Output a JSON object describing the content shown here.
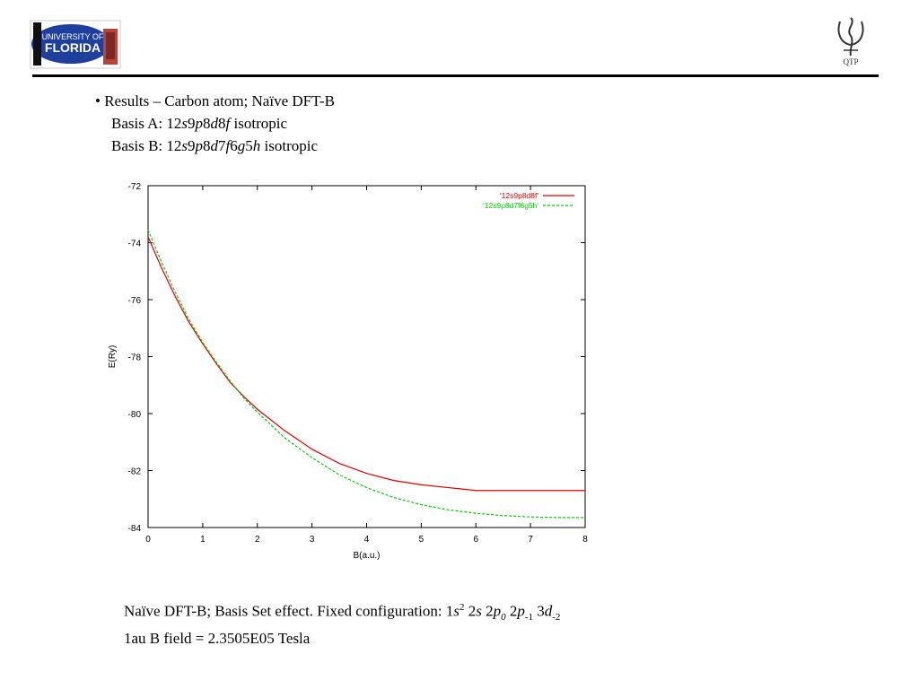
{
  "logos": {
    "left": {
      "line1": "UNIVERSITY OF",
      "line2": "FLORIDA"
    },
    "right": {
      "label": "QTP"
    }
  },
  "bullet": {
    "marker": "•",
    "title": "Results – Carbon atom; Naïve DFT-B",
    "basis_a": {
      "prefix": "Basis A: 12",
      "s": "s",
      "n9": "9",
      "p": "p",
      "n8": "8",
      "d": "d",
      "n8b": "8",
      "f": "f",
      "suffix": " isotropic"
    },
    "basis_b": {
      "prefix": "Basis B: 12",
      "s": "s",
      "n9": "9",
      "p": "p",
      "n8": "8",
      "d": "d",
      "n7": "7",
      "f": "f",
      "n6": "6",
      "g": "g",
      "n5": "5",
      "h": "h",
      "suffix": " isotropic"
    }
  },
  "caption": {
    "line1": {
      "text": "Naïve DFT-B; Basis Set effect. Fixed configuration: 1",
      "s1": "s",
      "sup2": "2",
      "sp2s": " 2",
      "s2": "s",
      "sp2p": " 2",
      "p0": "p",
      "sub0": "0",
      "sp2p2": " 2",
      "p1": "p",
      "sub1": "-1",
      "sp3d": " 3",
      "d": "d",
      "sub2": "-2"
    },
    "line2": "1au B field = 2.3505E05 Tesla"
  },
  "colors": {
    "series_a": "#e00000",
    "series_b": "#00d000",
    "axis": "#000000"
  },
  "chart_data": {
    "type": "line",
    "xlabel": "B(a.u.)",
    "ylabel": "E(Ry)",
    "xlim": [
      0,
      8
    ],
    "ylim": [
      -84,
      -72
    ],
    "xticks": [
      0,
      1,
      2,
      3,
      4,
      5,
      6,
      7,
      8
    ],
    "yticks": [
      -72,
      -74,
      -76,
      -78,
      -80,
      -82,
      -84
    ],
    "legend_position": "top-right",
    "series": [
      {
        "name": "'12s9p8d8f'",
        "style": "solid",
        "color": "#e00000",
        "x": [
          0,
          0.25,
          0.5,
          0.75,
          1,
          1.25,
          1.5,
          1.75,
          2,
          2.5,
          3,
          3.5,
          4,
          4.5,
          5,
          5.5,
          6,
          6.5,
          7,
          7.5,
          8
        ],
        "y": [
          -73.8,
          -74.9,
          -75.9,
          -76.8,
          -77.55,
          -78.25,
          -78.9,
          -79.4,
          -79.85,
          -80.6,
          -81.25,
          -81.75,
          -82.1,
          -82.35,
          -82.5,
          -82.6,
          -82.7,
          -82.7,
          -82.7,
          -82.7,
          -82.7
        ]
      },
      {
        "name": "'12s9p8d7f6g5h'",
        "style": "dashed",
        "color": "#00d000",
        "x": [
          0,
          0.25,
          0.5,
          0.75,
          1,
          1.25,
          1.5,
          1.75,
          2,
          2.5,
          3,
          3.5,
          4,
          4.5,
          5,
          5.5,
          6,
          6.5,
          7,
          7.5,
          8
        ],
        "y": [
          -73.55,
          -74.7,
          -75.75,
          -76.7,
          -77.5,
          -78.2,
          -78.85,
          -79.45,
          -79.95,
          -80.85,
          -81.55,
          -82.15,
          -82.6,
          -82.95,
          -83.2,
          -83.38,
          -83.5,
          -83.58,
          -83.63,
          -83.65,
          -83.65
        ]
      }
    ]
  }
}
